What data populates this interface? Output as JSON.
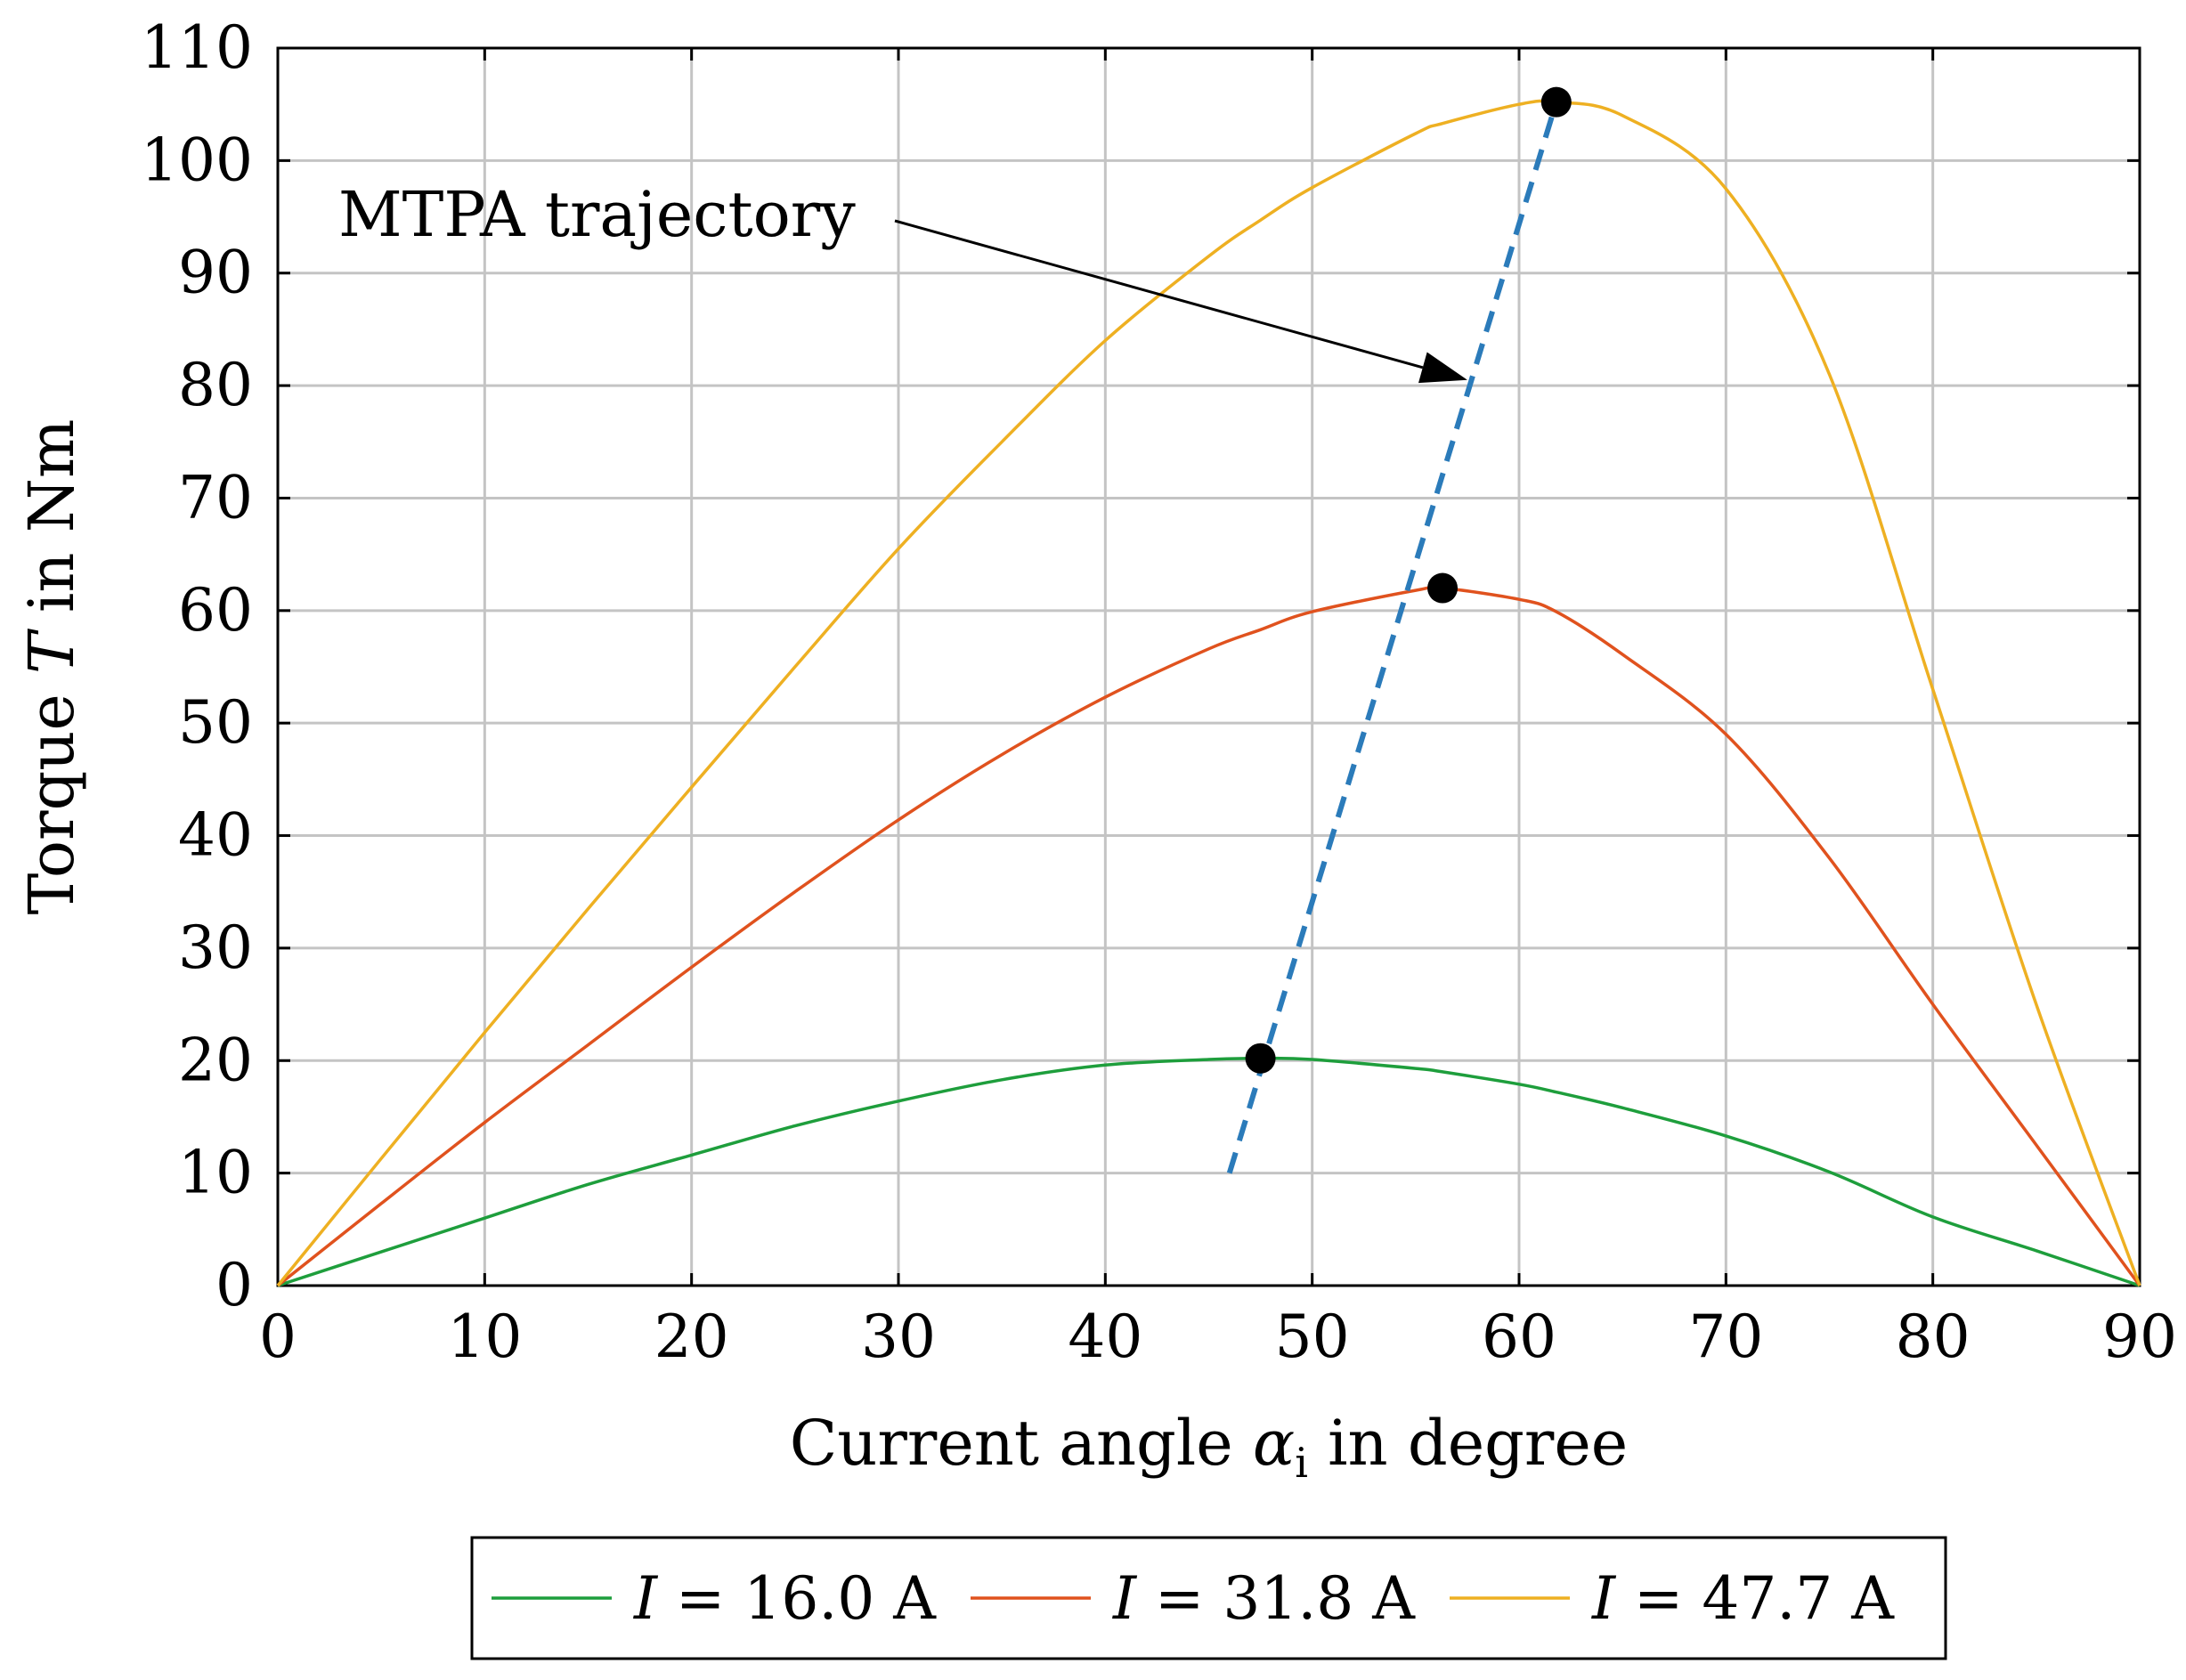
{
  "chart_data": {
    "type": "line",
    "title": "",
    "xlabel": {
      "prefix": "Current angle ",
      "symbol": "α",
      "subscript": "i",
      "suffix": " in degree"
    },
    "ylabel": {
      "prefix": "Torque ",
      "symbol": "T",
      "suffix": " in Nm"
    },
    "xlim": [
      0,
      90
    ],
    "ylim": [
      0,
      110
    ],
    "xticks": [
      0,
      10,
      20,
      30,
      40,
      50,
      60,
      70,
      80,
      90
    ],
    "yticks": [
      0,
      10,
      20,
      30,
      40,
      50,
      60,
      70,
      80,
      90,
      100,
      110
    ],
    "grid": true,
    "x": [
      0,
      5,
      10,
      15,
      20,
      25,
      30,
      35,
      40,
      45,
      47.5,
      50,
      55,
      56.3,
      60,
      61.8,
      65,
      70,
      75,
      80,
      85,
      90
    ],
    "series": [
      {
        "name": "I = 16.0 A",
        "label_symbol": "I",
        "label_rest": " = 16.0 A",
        "color": "#1e9e3c",
        "values": [
          0,
          3.0,
          6.0,
          9.0,
          11.6,
          14.2,
          16.4,
          18.3,
          19.6,
          20.1,
          20.2,
          20.1,
          19.3,
          19.0,
          17.9,
          17.2,
          15.8,
          13.3,
          10.1,
          6.1,
          3.1,
          0
        ]
      },
      {
        "name": "I = 31.8 A",
        "label_symbol": "I",
        "label_rest": " = 31.8 A",
        "color": "#e0521e",
        "values": [
          0,
          7.3,
          14.5,
          21.4,
          28.3,
          35.0,
          41.4,
          47.2,
          52.3,
          56.6,
          58.3,
          59.9,
          61.8,
          62.0,
          61.0,
          59.9,
          56.1,
          49.0,
          38.0,
          25.0,
          12.5,
          0
        ]
      },
      {
        "name": "I = 47.7 A",
        "label_symbol": "I",
        "label_rest": " = 47.7 A",
        "color": "#eeb022",
        "values": [
          0,
          11.3,
          22.5,
          33.5,
          44.3,
          55.0,
          65.5,
          75.0,
          84.0,
          91.5,
          94.7,
          97.6,
          102.4,
          103.3,
          105.0,
          105.2,
          104.0,
          97.5,
          81.0,
          53.0,
          25.0,
          0
        ]
      }
    ],
    "mtpa": {
      "name": "MTPA trajectory",
      "color": "#2b7bba",
      "line": {
        "x": [
          46.0,
          61.8
        ],
        "y": [
          10,
          105.2
        ]
      },
      "points": [
        {
          "x": 47.5,
          "y": 20.2
        },
        {
          "x": 56.3,
          "y": 62.0
        },
        {
          "x": 61.8,
          "y": 105.2
        }
      ],
      "annotation_text": "MTPA trajectory",
      "arrow_target": {
        "x": 57.5,
        "y": 80.5
      }
    }
  }
}
